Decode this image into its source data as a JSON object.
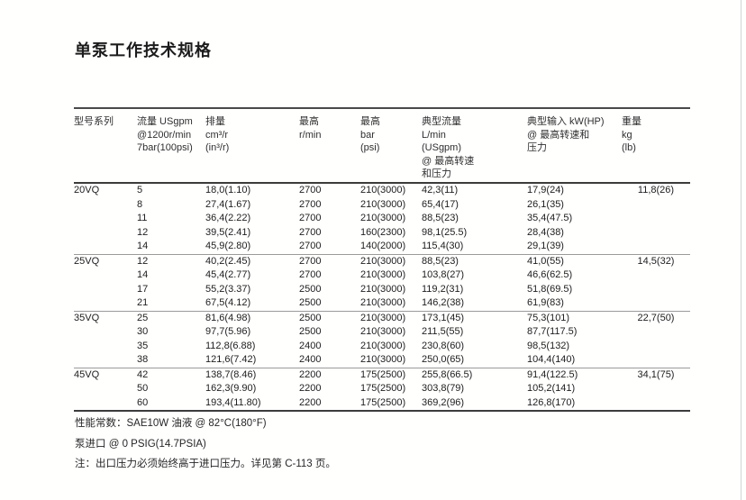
{
  "page": {
    "title": "单泵工作技术规格"
  },
  "table": {
    "headers": [
      {
        "lines": [
          "型号系列"
        ]
      },
      {
        "lines": [
          "流量 USgpm",
          "@1200r/min",
          "7bar(100psi)"
        ]
      },
      {
        "lines": [
          "排量",
          "cm³/r",
          "(in³/r)"
        ]
      },
      {
        "lines": [
          "最高",
          "r/min"
        ]
      },
      {
        "lines": [
          "最高",
          "bar",
          "(psi)"
        ]
      },
      {
        "lines": [
          "典型流量",
          "L/min",
          "(USgpm)",
          "@ 最高转速",
          "和压力"
        ]
      },
      {
        "lines": [
          "典型输入 kW(HP)",
          "@ 最高转速和",
          "压力"
        ]
      },
      {
        "lines": [
          "重量",
          "kg",
          "(lb)"
        ]
      }
    ],
    "groups": [
      {
        "model": "20VQ",
        "weight": "11,8(26)",
        "rows": [
          [
            "5",
            "18,0(1.10)",
            "2700",
            "210(3000)",
            "42,3(11)",
            "17,9(24)"
          ],
          [
            "8",
            "27,4(1.67)",
            "2700",
            "210(3000)",
            "65,4(17)",
            "26,1(35)"
          ],
          [
            "11",
            "36,4(2.22)",
            "2700",
            "210(3000)",
            "88,5(23)",
            "35,4(47.5)"
          ],
          [
            "12",
            "39,5(2.41)",
            "2700",
            "160(2300)",
            "98,1(25.5)",
            "28,4(38)"
          ],
          [
            "14",
            "45,9(2.80)",
            "2700",
            "140(2000)",
            "115,4(30)",
            "29,1(39)"
          ]
        ]
      },
      {
        "model": "25VQ",
        "weight": "14,5(32)",
        "rows": [
          [
            "12",
            "40,2(2.45)",
            "2700",
            "210(3000)",
            "88,5(23)",
            "41,0(55)"
          ],
          [
            "14",
            "45,4(2.77)",
            "2700",
            "210(3000)",
            "103,8(27)",
            "46,6(62.5)"
          ],
          [
            "17",
            "55,2(3.37)",
            "2500",
            "210(3000)",
            "119,2(31)",
            "51,8(69.5)"
          ],
          [
            "21",
            "67,5(4.12)",
            "2500",
            "210(3000)",
            "146,2(38)",
            "61,9(83)"
          ]
        ]
      },
      {
        "model": "35VQ",
        "weight": "22,7(50)",
        "rows": [
          [
            "25",
            "81,6(4.98)",
            "2500",
            "210(3000)",
            "173,1(45)",
            "75,3(101)"
          ],
          [
            "30",
            "97,7(5.96)",
            "2500",
            "210(3000)",
            "211,5(55)",
            "87,7(117.5)"
          ],
          [
            "35",
            "112,8(6.88)",
            "2400",
            "210(3000)",
            "230,8(60)",
            "98,5(132)"
          ],
          [
            "38",
            "121,6(7.42)",
            "2400",
            "210(3000)",
            "250,0(65)",
            "104,4(140)"
          ]
        ]
      },
      {
        "model": "45VQ",
        "weight": "34,1(75)",
        "rows": [
          [
            "42",
            "138,7(8.46)",
            "2200",
            "175(2500)",
            "255,8(66.5)",
            "91,4(122.5)"
          ],
          [
            "50",
            "162,3(9.90)",
            "2200",
            "175(2500)",
            "303,8(79)",
            "105,2(141)"
          ],
          [
            "60",
            "193,4(11.80)",
            "2200",
            "175(2500)",
            "369,2(96)",
            "126,8(170)"
          ]
        ]
      }
    ]
  },
  "notes": [
    "性能常数：SAE10W 油液 @ 82°C(180°F)",
    "泵进口 @ 0 PSIG(14.7PSIA)",
    "注：出口压力必须始终高于进口压力。详见第 C-113 页。"
  ]
}
